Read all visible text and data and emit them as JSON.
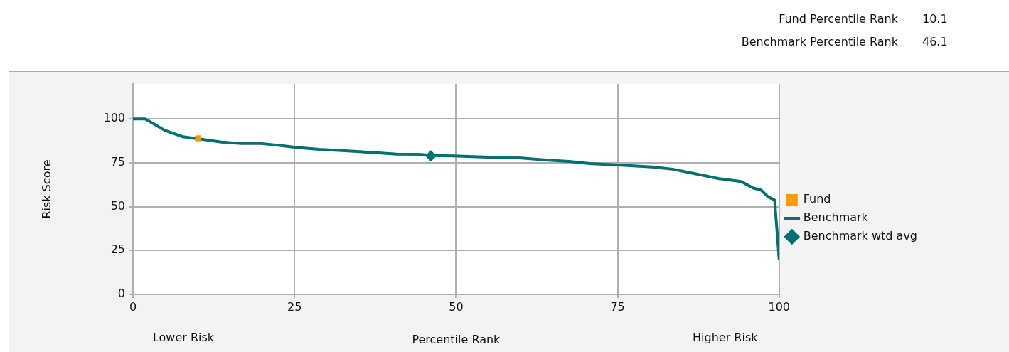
{
  "chart_data": {
    "type": "line",
    "xlabel": "Percentile Rank",
    "ylabel": "Risk Score",
    "annotations": [
      "Fund Percentile Rank 10.1",
      "Benchmark Percentile Rank 46.1",
      "Lower Risk",
      "Higher Risk"
    ],
    "xlim": [
      0,
      100
    ],
    "xticks": [
      0,
      25,
      50,
      75,
      100
    ],
    "ylim": [
      0,
      120
    ],
    "yticks": [
      0,
      25,
      50,
      75,
      100
    ],
    "grid": true,
    "legend": "right",
    "line_style": "solid",
    "series": [
      {
        "name": "Fund",
        "color": "#ff9900",
        "marker": "square",
        "x": [
          10.1
        ],
        "values": [
          89
        ]
      },
      {
        "name": "Benchmark",
        "color": "#007070",
        "marker": "none",
        "x": [
          0,
          1.9,
          4.9,
          7.7,
          10.2,
          13.7,
          16.8,
          19.9,
          23.2,
          25.2,
          28.8,
          32.8,
          36.8,
          40.8,
          44.4,
          46.3,
          49.6,
          55.6,
          59.5,
          64.3,
          67.5,
          70.7,
          75.1,
          80.3,
          83.5,
          87.1,
          90.7,
          94.1,
          96,
          97.2,
          98.3,
          99.3,
          100
        ],
        "values": [
          100,
          100,
          93.6,
          89.9,
          88.7,
          86.9,
          86,
          86,
          84.7,
          83.8,
          82.7,
          81.9,
          81,
          80,
          79.9,
          79.2,
          79,
          78.1,
          77.9,
          76.5,
          75.8,
          74.6,
          73.8,
          72.7,
          71.4,
          68.7,
          66,
          64.4,
          60.6,
          59.5,
          55.6,
          53.8,
          20.1
        ]
      },
      {
        "name": "Benchmark wtd avg",
        "color": "#007070",
        "marker": "diamond",
        "x": [
          46.1
        ],
        "values": [
          79
        ]
      }
    ]
  }
}
